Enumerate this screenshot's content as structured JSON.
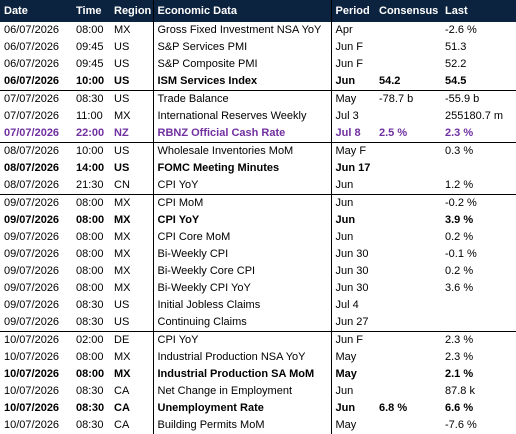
{
  "table": {
    "headers": [
      "Date",
      "Time",
      "Region",
      "Economic Data",
      "Period",
      "Consensus",
      "Last"
    ],
    "rows": [
      {
        "date": "06/07/2026",
        "time": "08:00",
        "region": "MX",
        "event": "Gross Fixed Investment NSA YoY",
        "period": "Apr",
        "last": "-2.6 %"
      },
      {
        "date": "06/07/2026",
        "time": "09:45",
        "region": "US",
        "event": "S&P Services PMI",
        "period": "Jun F",
        "last": "51.3"
      },
      {
        "date": "06/07/2026",
        "time": "09:45",
        "region": "US",
        "event": "S&P Composite PMI",
        "period": "Jun F",
        "last": "52.2"
      },
      {
        "date": "06/07/2026",
        "time": "10:00",
        "region": "US",
        "event": "ISM Services Index",
        "period": "Jun",
        "consensus": "54.2",
        "last": "54.5",
        "style": "bold"
      },
      {
        "date": "07/07/2026",
        "time": "08:30",
        "region": "US",
        "event": "Trade Balance",
        "period": "May",
        "consensus": "-78.7 b",
        "last": "-55.9 b"
      },
      {
        "date": "07/07/2026",
        "time": "11:00",
        "region": "MX",
        "event": "International Reserves Weekly",
        "period": "Jul 3",
        "last": "255180.7 m"
      },
      {
        "date": "07/07/2026",
        "time": "22:00",
        "region": "NZ",
        "event": "RBNZ Official Cash Rate",
        "period": "Jul 8",
        "consensus": "2.5 %",
        "last": "2.3 %",
        "style": "highlight"
      },
      {
        "date": "08/07/2026",
        "time": "10:00",
        "region": "US",
        "event": "Wholesale Inventories MoM",
        "period": "May F",
        "last": "0.3 %"
      },
      {
        "date": "08/07/2026",
        "time": "14:00",
        "region": "US",
        "event": "FOMC Meeting Minutes",
        "period": "Jun 17",
        "style": "bold"
      },
      {
        "date": "08/07/2026",
        "time": "21:30",
        "region": "CN",
        "event": "CPI YoY",
        "period": "Jun",
        "last": "1.2 %"
      },
      {
        "date": "09/07/2026",
        "time": "08:00",
        "region": "MX",
        "event": "CPI MoM",
        "period": "Jun",
        "last": "-0.2 %"
      },
      {
        "date": "09/07/2026",
        "time": "08:00",
        "region": "MX",
        "event": "CPI YoY",
        "period": "Jun",
        "last": "3.9 %",
        "style": "bold"
      },
      {
        "date": "09/07/2026",
        "time": "08:00",
        "region": "MX",
        "event": "CPI Core MoM",
        "period": "Jun",
        "last": "0.2 %"
      },
      {
        "date": "09/07/2026",
        "time": "08:00",
        "region": "MX",
        "event": "Bi-Weekly CPI",
        "period": "Jun 30",
        "last": "-0.1 %"
      },
      {
        "date": "09/07/2026",
        "time": "08:00",
        "region": "MX",
        "event": "Bi-Weekly Core CPI",
        "period": "Jun 30",
        "last": "0.2 %"
      },
      {
        "date": "09/07/2026",
        "time": "08:00",
        "region": "MX",
        "event": "Bi-Weekly CPI YoY",
        "period": "Jun 30",
        "last": "3.6 %"
      },
      {
        "date": "09/07/2026",
        "time": "08:30",
        "region": "US",
        "event": "Initial Jobless Claims",
        "period": "Jul 4"
      },
      {
        "date": "09/07/2026",
        "time": "08:30",
        "region": "US",
        "event": "Continuing Claims",
        "period": "Jun 27"
      },
      {
        "date": "10/07/2026",
        "time": "02:00",
        "region": "DE",
        "event": "CPI YoY",
        "period": "Jun F",
        "last": "2.3 %"
      },
      {
        "date": "10/07/2026",
        "time": "08:00",
        "region": "MX",
        "event": "Industrial Production NSA YoY",
        "period": "May",
        "last": "2.3 %"
      },
      {
        "date": "10/07/2026",
        "time": "08:00",
        "region": "MX",
        "event": "Industrial Production SA MoM",
        "period": "May",
        "last": "2.1 %",
        "style": "bold"
      },
      {
        "date": "10/07/2026",
        "time": "08:30",
        "region": "CA",
        "event": "Net Change in Employment",
        "period": "Jun",
        "last": "87.8 k"
      },
      {
        "date": "10/07/2026",
        "time": "08:30",
        "region": "CA",
        "event": "Unemployment Rate",
        "period": "Jun",
        "consensus": "6.8 %",
        "last": "6.6 %",
        "style": "bold"
      },
      {
        "date": "10/07/2026",
        "time": "08:30",
        "region": "CA",
        "event": "Building Permits MoM",
        "period": "May",
        "last": "-7.6 %"
      }
    ]
  }
}
